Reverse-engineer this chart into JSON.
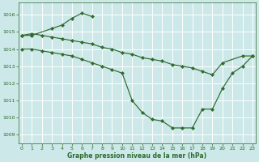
{
  "bg_color": "#cce8e8",
  "grid_color": "#ffffff",
  "line_color": "#2d6a2d",
  "xlabel": "Graphe pression niveau de la mer (hPa)",
  "ylim": [
    1008.5,
    1016.7
  ],
  "xlim": [
    -0.3,
    23.3
  ],
  "yticks": [
    1009,
    1010,
    1011,
    1012,
    1013,
    1014,
    1015,
    1016
  ],
  "xticks": [
    0,
    1,
    2,
    3,
    4,
    5,
    6,
    7,
    8,
    9,
    10,
    11,
    12,
    13,
    14,
    15,
    16,
    17,
    18,
    19,
    20,
    21,
    22,
    23
  ],
  "curve_a_x": [
    0,
    1,
    3,
    4,
    5,
    6,
    7
  ],
  "curve_a_y": [
    1014.8,
    1014.8,
    1015.2,
    1015.4,
    1015.8,
    1016.1,
    1015.9
  ],
  "curve_b_x": [
    0,
    1,
    2,
    3,
    4,
    5,
    6,
    7,
    8,
    9,
    10,
    11,
    12,
    13,
    14,
    15,
    16,
    17,
    18,
    19,
    20,
    22,
    23
  ],
  "curve_b_y": [
    1014.8,
    1014.9,
    1014.8,
    1014.7,
    1014.6,
    1014.5,
    1014.4,
    1014.3,
    1014.1,
    1014.0,
    1013.8,
    1013.7,
    1013.5,
    1013.4,
    1013.3,
    1013.1,
    1013.0,
    1012.9,
    1012.7,
    1012.5,
    1013.2,
    1013.6,
    1013.6
  ],
  "curve_c_x": [
    0,
    1,
    2,
    3,
    4,
    5,
    6,
    7,
    8,
    9,
    10,
    11,
    12,
    13,
    14,
    15,
    16,
    17,
    18,
    19,
    20,
    21,
    22,
    23
  ],
  "curve_c_y": [
    1014.0,
    1014.0,
    1013.9,
    1013.8,
    1013.7,
    1013.6,
    1013.4,
    1013.2,
    1013.0,
    1012.8,
    1012.6,
    1011.0,
    1010.3,
    1009.9,
    1009.8,
    1009.4,
    1009.4,
    1009.4,
    1010.5,
    1010.5,
    1011.7,
    1012.6,
    1013.0,
    1013.6
  ]
}
